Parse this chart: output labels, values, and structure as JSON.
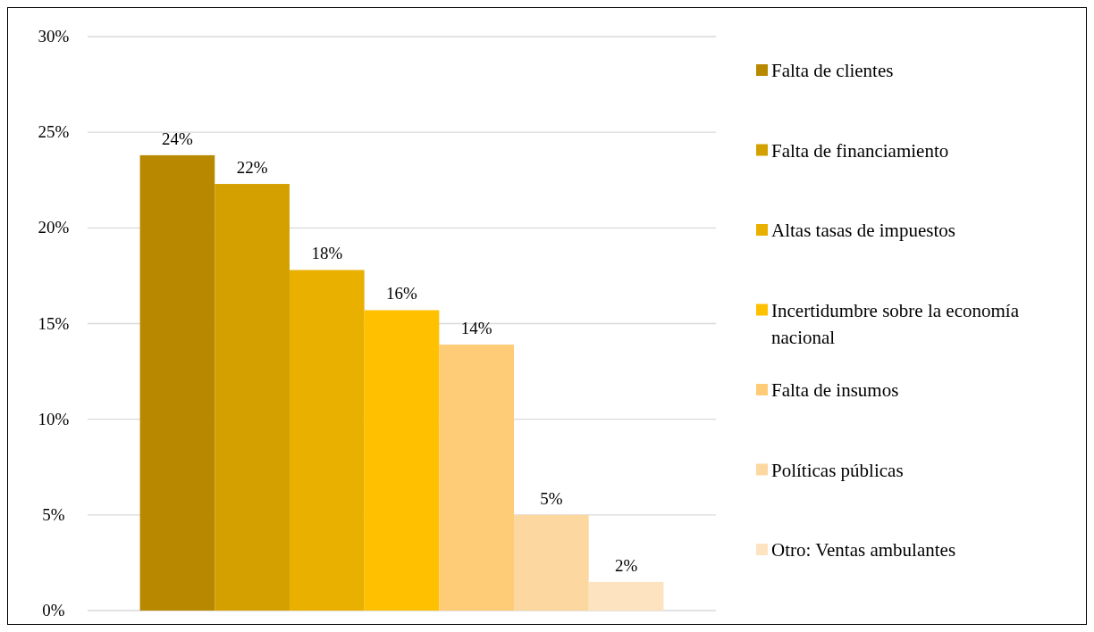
{
  "chart_data": {
    "type": "bar",
    "categories": [
      null
    ],
    "series": [
      {
        "name": "Falta de clientes",
        "color": "#b88900",
        "values": [
          23.8
        ],
        "value_labels": [
          "24%"
        ]
      },
      {
        "name": "Falta de financiamiento",
        "color": "#d4a000",
        "values": [
          22.3
        ],
        "value_labels": [
          "22%"
        ]
      },
      {
        "name": "Altas tasas de impuestos",
        "color": "#e9b000",
        "values": [
          17.8
        ],
        "value_labels": [
          "18%"
        ]
      },
      {
        "name": "Incertidumbre sobre la economía nacional",
        "color": "#ffc000",
        "values": [
          15.7
        ],
        "value_labels": [
          "16%"
        ]
      },
      {
        "name": "Falta de insumos",
        "color": "#fecb76",
        "values": [
          13.9
        ],
        "value_labels": [
          "14%"
        ]
      },
      {
        "name": "Políticas públicas",
        "color": "#fdd7a0",
        "values": [
          5.0
        ],
        "value_labels": [
          "5%"
        ]
      },
      {
        "name": "Otro: Ventas ambulantes",
        "color": "#fde3c0",
        "values": [
          1.5
        ],
        "value_labels": [
          "2%"
        ]
      }
    ],
    "ylim": [
      0,
      30
    ],
    "yticks": [
      {
        "value": 0,
        "label": "0%"
      },
      {
        "value": 5,
        "label": "5%"
      },
      {
        "value": 10,
        "label": "10%"
      },
      {
        "value": 15,
        "label": "15%"
      },
      {
        "value": 20,
        "label": "20%"
      },
      {
        "value": 25,
        "label": "25%"
      },
      {
        "value": 30,
        "label": "30%"
      }
    ],
    "grid": "y",
    "legend": "right"
  }
}
